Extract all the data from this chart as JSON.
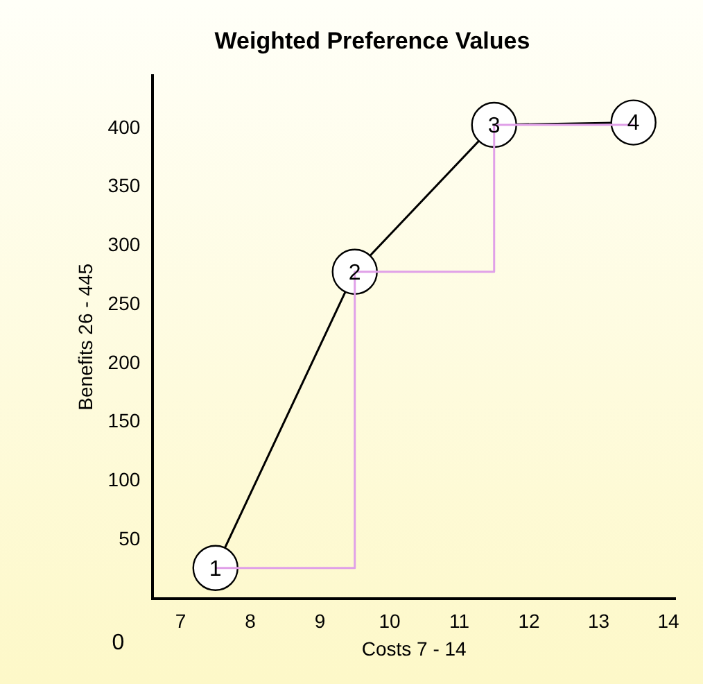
{
  "chart_data": {
    "type": "line",
    "title": "Weighted Preference Values",
    "xlabel": "Costs 7 - 14",
    "ylabel": "Benefits 26 - 445",
    "x": [
      7.5,
      9.5,
      11.5,
      13.5
    ],
    "series": [
      {
        "type": "step",
        "color": "#e0a0e8",
        "values": [
          26,
          278,
          403,
          403
        ]
      },
      {
        "color": "#000000",
        "values": [
          26,
          278,
          403,
          405
        ],
        "marker": "circle"
      }
    ],
    "xlim": [
      6.6,
      14.1
    ],
    "xticks": [
      7,
      8,
      9,
      10,
      11,
      12,
      13,
      14
    ],
    "ylim": [
      0,
      445
    ],
    "yticks": [
      50,
      100,
      150,
      200,
      250,
      300,
      350,
      400
    ],
    "annotations": [
      "0",
      {
        "text": "1",
        "x": 7.5,
        "y": 26
      },
      {
        "text": "2",
        "x": 9.5,
        "y": 278
      },
      {
        "text": "3",
        "x": 11.5,
        "y": 403
      },
      {
        "text": "4",
        "x": 13.5,
        "y": 405
      }
    ],
    "grid": false,
    "legend": false
  }
}
